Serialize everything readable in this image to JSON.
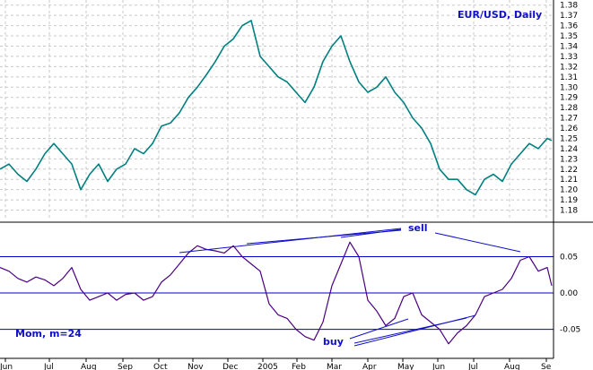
{
  "chart_data": [
    {
      "panel": "price",
      "type": "line",
      "title": "EUR/USD, Daily",
      "ylim": [
        1.17,
        1.385
      ],
      "grid": true,
      "yticks": [
        1.18,
        1.19,
        1.2,
        1.21,
        1.22,
        1.23,
        1.24,
        1.25,
        1.26,
        1.27,
        1.28,
        1.29,
        1.3,
        1.31,
        1.32,
        1.33,
        1.34,
        1.35,
        1.36,
        1.37,
        1.38
      ],
      "x_ticks": [
        "Jun",
        "Jul",
        "Aug",
        "Sep",
        "Oct",
        "Nov",
        "Dec",
        "2005",
        "Feb",
        "Mar",
        "Apr",
        "May",
        "Jun",
        "Jul",
        "Aug",
        "Se"
      ],
      "color": "#008080",
      "series": [
        {
          "x": [
            0,
            10,
            20,
            30,
            40,
            50,
            60,
            70,
            80,
            90,
            100,
            110,
            120,
            130,
            140,
            150,
            160,
            170,
            180,
            190,
            200,
            210,
            220,
            230,
            240,
            250,
            260,
            270,
            280,
            290,
            300,
            310,
            320,
            330,
            340,
            350,
            360,
            370,
            380,
            390,
            400,
            410,
            420,
            430,
            440,
            450,
            460,
            470,
            480,
            490,
            500,
            510,
            520,
            530,
            540,
            550,
            560,
            570,
            580,
            590,
            600,
            610,
            615
          ],
          "values": [
            1.22,
            1.225,
            1.215,
            1.208,
            1.22,
            1.235,
            1.245,
            1.235,
            1.225,
            1.2,
            1.215,
            1.225,
            1.208,
            1.22,
            1.225,
            1.24,
            1.235,
            1.245,
            1.262,
            1.265,
            1.275,
            1.29,
            1.3,
            1.312,
            1.325,
            1.34,
            1.347,
            1.36,
            1.365,
            1.33,
            1.32,
            1.31,
            1.305,
            1.295,
            1.285,
            1.3,
            1.325,
            1.34,
            1.35,
            1.325,
            1.305,
            1.295,
            1.3,
            1.31,
            1.295,
            1.285,
            1.27,
            1.26,
            1.245,
            1.22,
            1.21,
            1.21,
            1.2,
            1.195,
            1.21,
            1.215,
            1.208,
            1.225,
            1.235,
            1.245,
            1.24,
            1.25,
            1.248
          ]
        }
      ]
    },
    {
      "panel": "momentum",
      "type": "line",
      "title": "Mom, m=24",
      "ylim": [
        -0.09,
        0.095
      ],
      "yticks": [
        -0.05,
        0.0,
        0.05
      ],
      "ytick_labels": [
        "-0.05",
        "0.00",
        "0.05"
      ],
      "hlines": [
        0.05,
        0.0,
        -0.05
      ],
      "color": "#4b0082",
      "series": [
        {
          "x": [
            0,
            10,
            20,
            30,
            40,
            50,
            60,
            70,
            80,
            90,
            100,
            110,
            120,
            130,
            140,
            150,
            160,
            170,
            180,
            190,
            200,
            210,
            220,
            230,
            240,
            250,
            260,
            270,
            280,
            290,
            300,
            310,
            320,
            330,
            340,
            350,
            360,
            370,
            380,
            390,
            400,
            410,
            420,
            430,
            440,
            450,
            460,
            470,
            480,
            490,
            500,
            510,
            520,
            530,
            540,
            550,
            560,
            570,
            580,
            590,
            600,
            610,
            615
          ],
          "values": [
            0.035,
            0.03,
            0.02,
            0.015,
            0.022,
            0.018,
            0.01,
            0.02,
            0.035,
            0.005,
            -0.01,
            -0.005,
            0.0,
            -0.01,
            -0.002,
            0.0,
            -0.01,
            -0.005,
            0.015,
            0.025,
            0.04,
            0.055,
            0.065,
            0.06,
            0.058,
            0.055,
            0.065,
            0.05,
            0.04,
            0.03,
            -0.015,
            -0.03,
            -0.035,
            -0.05,
            -0.06,
            -0.065,
            -0.04,
            0.01,
            0.04,
            0.07,
            0.05,
            -0.01,
            -0.025,
            -0.045,
            -0.035,
            -0.005,
            0.0,
            -0.03,
            -0.04,
            -0.05,
            -0.07,
            -0.055,
            -0.045,
            -0.03,
            -0.005,
            0.0,
            0.005,
            0.02,
            0.045,
            0.05,
            0.03,
            0.035,
            0.01
          ]
        }
      ],
      "annotations": [
        {
          "text": "sell"
        },
        {
          "text": "buy"
        }
      ]
    }
  ]
}
